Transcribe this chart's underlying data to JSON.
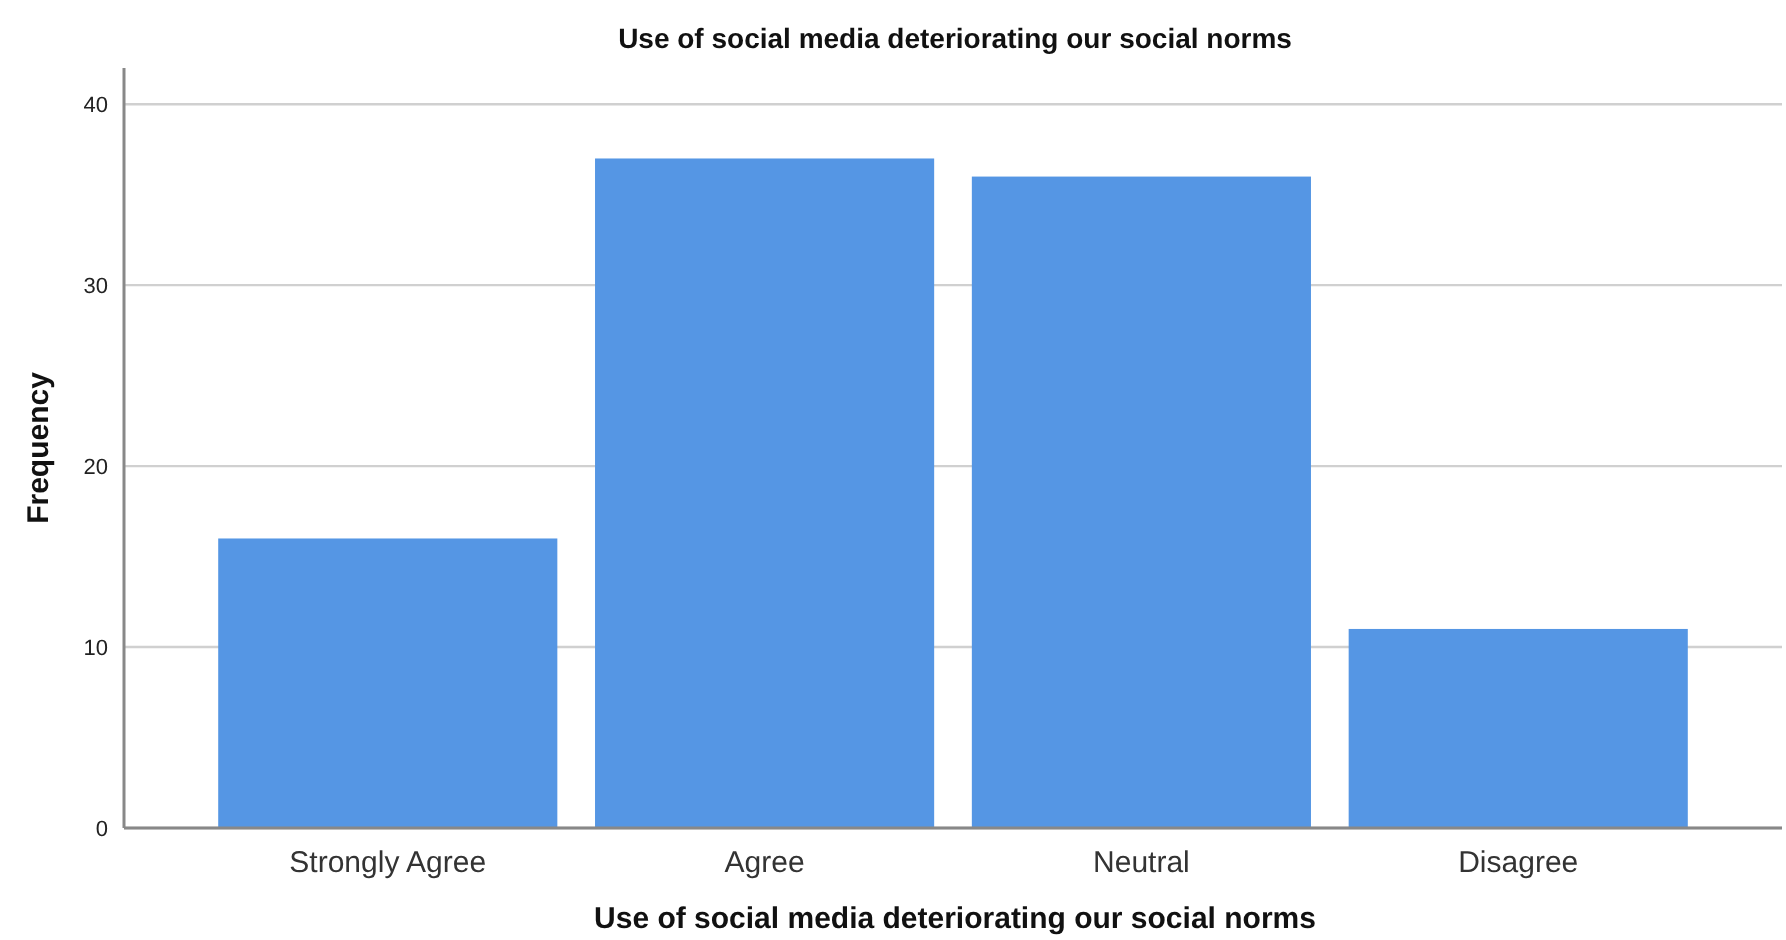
{
  "chart_data": {
    "type": "bar",
    "title": "Use of social media deteriorating our social norms",
    "xlabel": "Use of social media deteriorating our social norms",
    "ylabel": "Frequency",
    "categories": [
      "Strongly Agree",
      "Agree",
      "Neutral",
      "Disagree"
    ],
    "values": [
      16,
      37,
      36,
      11
    ],
    "color": "#5596e4",
    "ylim": [
      0,
      42
    ],
    "yticks": [
      0,
      10,
      20,
      30,
      40
    ],
    "grid": "y"
  }
}
